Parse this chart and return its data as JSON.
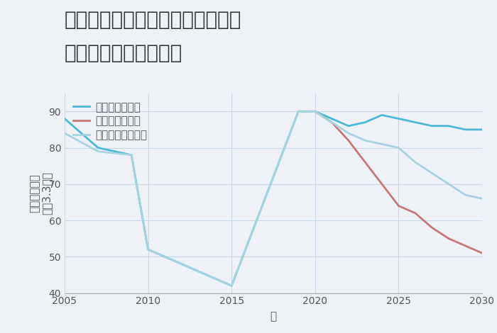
{
  "title_line1": "福岡県北九州市小倉北区西港町の",
  "title_line2": "中古戸建ての価格推移",
  "xlabel": "年",
  "ylabel": "単価（万円）\n坪（3.3㎡）",
  "xlim": [
    2005,
    2030
  ],
  "ylim": [
    40,
    95
  ],
  "yticks": [
    40,
    50,
    60,
    70,
    80,
    90
  ],
  "xticks": [
    2005,
    2010,
    2015,
    2020,
    2025,
    2030
  ],
  "background_color": "#eef2f7",
  "plot_bg_color": "#eef2f7",
  "good_scenario": {
    "label": "グッドシナリオ",
    "color": "#4db8d4",
    "x": [
      2005,
      2007,
      2009,
      2010,
      2015,
      2019,
      2020,
      2021,
      2022,
      2023,
      2024,
      2025,
      2026,
      2027,
      2028,
      2029,
      2030
    ],
    "y": [
      88,
      80,
      78,
      52,
      42,
      90,
      90,
      88,
      86,
      87,
      89,
      88,
      87,
      86,
      86,
      85,
      85
    ]
  },
  "bad_scenario": {
    "label": "バッドシナリオ",
    "color": "#c87878",
    "x": [
      2020,
      2021,
      2022,
      2023,
      2024,
      2025,
      2026,
      2027,
      2028,
      2029,
      2030
    ],
    "y": [
      90,
      87,
      82,
      76,
      70,
      64,
      62,
      58,
      55,
      53,
      51
    ]
  },
  "normal_scenario": {
    "label": "ノーマルシナリオ",
    "color": "#a8d4e0",
    "x": [
      2005,
      2007,
      2009,
      2010,
      2015,
      2019,
      2020,
      2021,
      2022,
      2023,
      2024,
      2025,
      2026,
      2027,
      2028,
      2029,
      2030
    ],
    "y": [
      84,
      79,
      78,
      52,
      42,
      90,
      90,
      87,
      84,
      82,
      81,
      80,
      76,
      73,
      70,
      67,
      66
    ]
  },
  "grid_color": "#c8d8e8",
  "title_fontsize": 20,
  "axis_label_fontsize": 11,
  "tick_fontsize": 10,
  "legend_fontsize": 11
}
